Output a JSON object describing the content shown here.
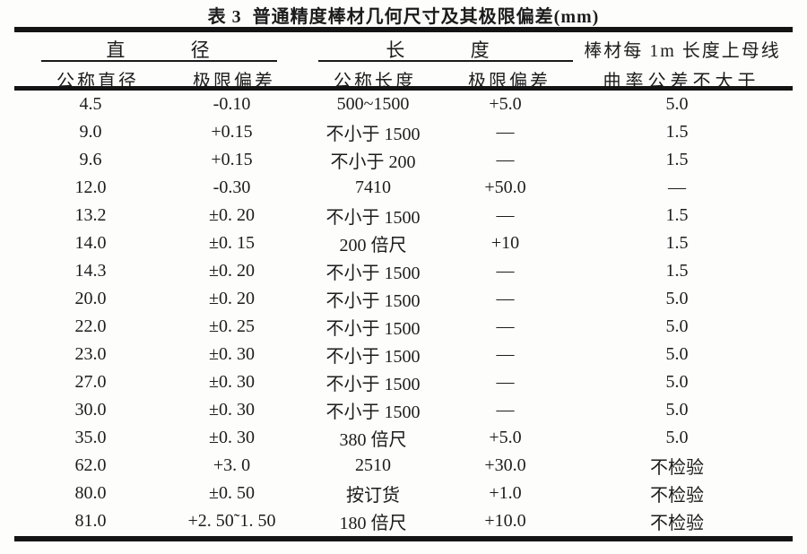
{
  "title": "表 3  普通精度棒材几何尺寸及其极限偏差(mm)",
  "table": {
    "group_headers": {
      "diameter": "直 径",
      "length": "长 度",
      "curvature_line1": "棒材每 1m 长度上母线",
      "curvature_line2": "曲率公差不大于"
    },
    "sub_headers": {
      "nominal_diameter": "公称直径",
      "diameter_deviation": "极限偏差",
      "nominal_length": "公称长度",
      "length_deviation": "极限偏差"
    },
    "columns": [
      "公称直径",
      "极限偏差",
      "公称长度",
      "极限偏差",
      "棒材每1m长度上母线曲率公差不大于"
    ],
    "rows": [
      [
        "4.5",
        "-0.10",
        "500~1500",
        "+5.0",
        "5.0"
      ],
      [
        "9.0",
        "+0.15",
        "不小于 1500",
        "—",
        "1.5"
      ],
      [
        "9.6",
        "+0.15",
        "不小于 200",
        "—",
        "1.5"
      ],
      [
        "12.0",
        "-0.30",
        "7410",
        "+50.0",
        "—"
      ],
      [
        "13.2",
        "±0. 20",
        "不小于 1500",
        "—",
        "1.5"
      ],
      [
        "14.0",
        "±0. 15",
        "200 倍尺",
        "+10",
        "1.5"
      ],
      [
        "14.3",
        "±0. 20",
        "不小于 1500",
        "—",
        "1.5"
      ],
      [
        "20.0",
        "±0. 20",
        "不小于 1500",
        "—",
        "5.0"
      ],
      [
        "22.0",
        "±0. 25",
        "不小于 1500",
        "—",
        "5.0"
      ],
      [
        "23.0",
        "±0. 30",
        "不小于 1500",
        "—",
        "5.0"
      ],
      [
        "27.0",
        "±0. 30",
        "不小于 1500",
        "—",
        "5.0"
      ],
      [
        "30.0",
        "±0. 30",
        "不小于 1500",
        "—",
        "5.0"
      ],
      [
        "35.0",
        "±0. 30",
        "380 倍尺",
        "+5.0",
        "5.0"
      ],
      [
        "62.0",
        "+3. 0",
        "2510",
        "+30.0",
        "不检验"
      ],
      [
        "80.0",
        "±0. 50",
        "按订货",
        "+1.0",
        "不检验"
      ],
      [
        "81.0",
        "+2. 50˜1. 50",
        "180 倍尺",
        "+10.0",
        "不检验"
      ]
    ]
  },
  "colors": {
    "background": "#fdfdfc",
    "text": "#1c1c1c",
    "rule": "#141414"
  }
}
